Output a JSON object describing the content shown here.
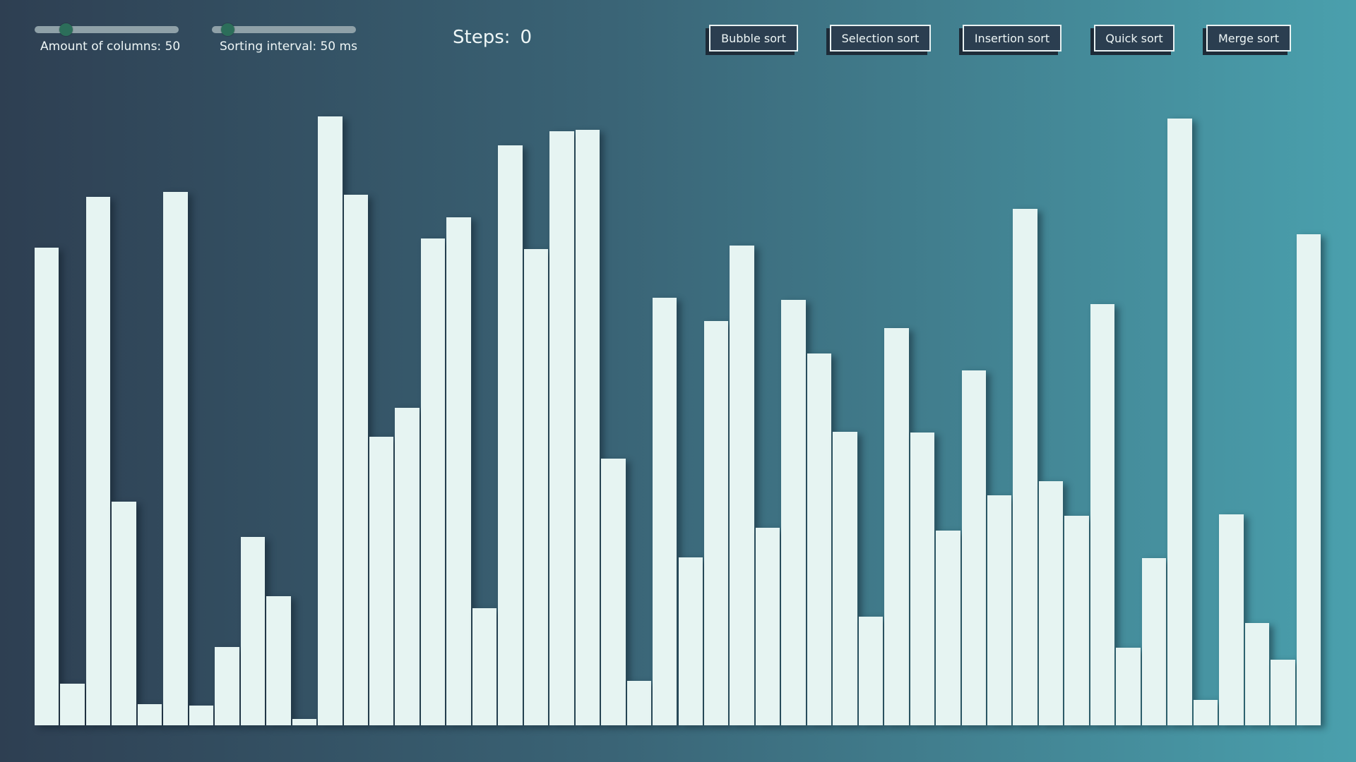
{
  "controls": {
    "columns_slider": {
      "label": "Amount of columns: 50",
      "level": 0.19
    },
    "interval_slider": {
      "label": "Sorting interval: 50 ms",
      "level": 0.07
    },
    "steps": {
      "label": "Steps:",
      "value": "0"
    },
    "buttons": [
      {
        "label": "Bubble sort"
      },
      {
        "label": "Selection sort"
      },
      {
        "label": "Insertion sort"
      },
      {
        "label": "Quick sort"
      },
      {
        "label": "Merge sort"
      }
    ]
  },
  "colors": {
    "bar": "#e6f4f2",
    "slider_track": "#8fa1a8",
    "slider_thumb": "#2c6e5a",
    "button_bg": "#2b3e50"
  },
  "columns": {
    "max": 870,
    "values": [
      680,
      59,
      752,
      318,
      30,
      759,
      28,
      112,
      268,
      184,
      9,
      867,
      755,
      411,
      452,
      693,
      723,
      167,
      826,
      678,
      846,
      848,
      380,
      63,
      609,
      239,
      576,
      683,
      281,
      606,
      529,
      418,
      155,
      566,
      417,
      277,
      505,
      328,
      735,
      348,
      298,
      600,
      111,
      238,
      864,
      36,
      300,
      146,
      93,
      699
    ]
  }
}
